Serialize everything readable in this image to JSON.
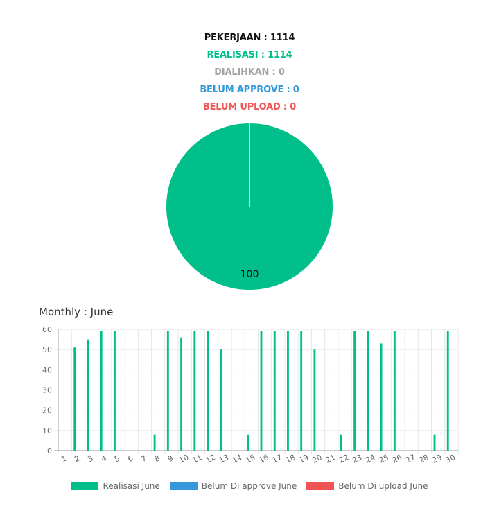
{
  "summary": {
    "pekerjaan": "PEKERJAAN : 1114",
    "realisasi": "REALISASI : 1114",
    "dialihkan": "DIALIHKAN : 0",
    "belum_approve": "BELUM APPROVE : 0",
    "belum_upload": "BELUM UPLOAD : 0"
  },
  "colors": {
    "realisasi": "#00bf8a",
    "approve": "#3498db",
    "upload": "#f05454",
    "grid": "#e6e6e6",
    "axis": "#999999",
    "tick": "#666666"
  },
  "chart_data": [
    {
      "type": "pie",
      "categories": [
        "Realisasi",
        "Dialihkan",
        "Belum Approve",
        "Belum Upload"
      ],
      "values": [
        100,
        0,
        0,
        0
      ],
      "data_labels": [
        "100"
      ]
    },
    {
      "type": "bar",
      "title": "Monthly : June",
      "categories": [
        "1",
        "2",
        "3",
        "4",
        "5",
        "6",
        "7",
        "8",
        "9",
        "10",
        "11",
        "12",
        "13",
        "14",
        "15",
        "16",
        "17",
        "18",
        "19",
        "20",
        "21",
        "22",
        "23",
        "24",
        "25",
        "26",
        "27",
        "28",
        "29",
        "30"
      ],
      "series": [
        {
          "name": "Realisasi June",
          "values": [
            0,
            51,
            55,
            59,
            59,
            0,
            0,
            8,
            59,
            56,
            59,
            59,
            50,
            0,
            8,
            59,
            59,
            59,
            59,
            50,
            0,
            8,
            59,
            59,
            53,
            59,
            0,
            0,
            8,
            59
          ]
        },
        {
          "name": "Belum Di approve June",
          "values": [
            0,
            0,
            0,
            0,
            0,
            0,
            0,
            0,
            0,
            0,
            0,
            0,
            0,
            0,
            0,
            0,
            0,
            0,
            0,
            0,
            0,
            0,
            0,
            0,
            0,
            0,
            0,
            0,
            0,
            0
          ]
        },
        {
          "name": "Belum Di upload June",
          "values": [
            0,
            0,
            0,
            0,
            0,
            0,
            0,
            0,
            0,
            0,
            0,
            0,
            0,
            0,
            0,
            0,
            0,
            0,
            0,
            0,
            0,
            0,
            0,
            0,
            0,
            0,
            0,
            0,
            0,
            0
          ]
        }
      ],
      "ylim": [
        0,
        60
      ],
      "yticks": [
        0,
        10,
        20,
        30,
        40,
        50,
        60
      ],
      "grid": true,
      "legend": "bottom"
    }
  ]
}
